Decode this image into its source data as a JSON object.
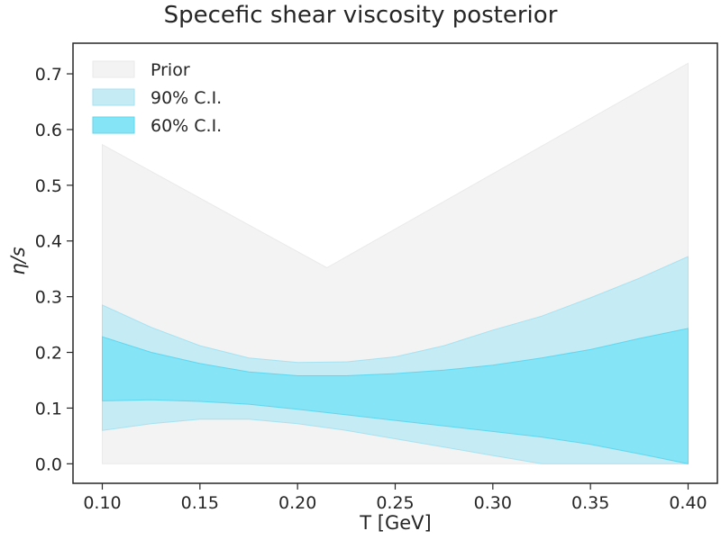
{
  "chart_data": {
    "type": "area",
    "title": "Specefic shear viscosity posterior",
    "xlabel": "T [GeV]",
    "ylabel": "η/s",
    "xlim": [
      0.085,
      0.415
    ],
    "ylim": [
      -0.035,
      0.755
    ],
    "xticks": [
      "0.10",
      "0.15",
      "0.20",
      "0.25",
      "0.30",
      "0.35",
      "0.40"
    ],
    "yticks": [
      "0.0",
      "0.1",
      "0.2",
      "0.3",
      "0.4",
      "0.5",
      "0.6",
      "0.7"
    ],
    "grid": false,
    "legend_position": "upper-left",
    "series": [
      {
        "name": "Prior",
        "color": "#f3f3f3",
        "edge": "#eaeaea",
        "x": [
          0.1,
          0.215,
          0.4
        ],
        "lower": [
          0.0,
          0.0,
          0.0
        ],
        "upper": [
          0.573,
          0.352,
          0.719
        ]
      },
      {
        "name": "90% C.I.",
        "color": "#c5ebf4",
        "edge": "#a7e2f1",
        "x": [
          0.1,
          0.125,
          0.15,
          0.175,
          0.2,
          0.225,
          0.25,
          0.275,
          0.3,
          0.325,
          0.35,
          0.375,
          0.4
        ],
        "lower": [
          0.06,
          0.072,
          0.08,
          0.08,
          0.072,
          0.06,
          0.045,
          0.03,
          0.015,
          0.0,
          0.0,
          0.0,
          0.0
        ],
        "upper": [
          0.285,
          0.245,
          0.212,
          0.19,
          0.182,
          0.183,
          0.192,
          0.212,
          0.24,
          0.265,
          0.298,
          0.333,
          0.372
        ]
      },
      {
        "name": "60% C.I.",
        "color": "#85e4f5",
        "edge": "#5fd7ef",
        "x": [
          0.1,
          0.125,
          0.15,
          0.175,
          0.2,
          0.225,
          0.25,
          0.275,
          0.3,
          0.325,
          0.35,
          0.375,
          0.4
        ],
        "lower": [
          0.113,
          0.115,
          0.112,
          0.107,
          0.098,
          0.088,
          0.078,
          0.068,
          0.058,
          0.048,
          0.035,
          0.018,
          0.0
        ],
        "upper": [
          0.228,
          0.2,
          0.18,
          0.165,
          0.158,
          0.158,
          0.162,
          0.168,
          0.177,
          0.19,
          0.205,
          0.225,
          0.243
        ]
      }
    ]
  }
}
